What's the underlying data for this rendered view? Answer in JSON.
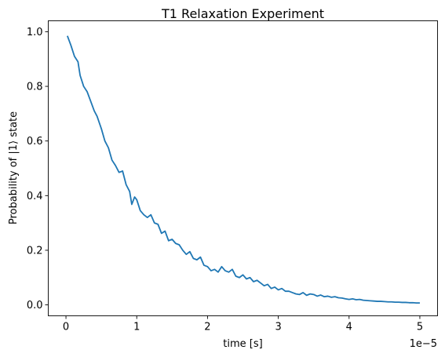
{
  "chart_data": {
    "type": "line",
    "title": "T1 Relaxation Experiment",
    "xlabel": "time [s]",
    "ylabel": "Probability of |1⟩ state",
    "x_offset_label": "1e−5",
    "x_scale": 1e-05,
    "xlim": [
      -0.25,
      5.25
    ],
    "ylim": [
      -0.04,
      1.04
    ],
    "x_ticks": [
      0,
      1,
      2,
      3,
      4,
      5
    ],
    "x_tick_labels": [
      "0",
      "1",
      "2",
      "3",
      "4",
      "5"
    ],
    "y_ticks": [
      0.0,
      0.2,
      0.4,
      0.6,
      0.8,
      1.0
    ],
    "y_tick_labels": [
      "0.0",
      "0.2",
      "0.4",
      "0.6",
      "0.8",
      "1.0"
    ],
    "grid": false,
    "series": [
      {
        "color": "#1f77b4",
        "x": [
          0.02,
          0.07,
          0.12,
          0.17,
          0.2,
          0.25,
          0.3,
          0.35,
          0.4,
          0.44,
          0.5,
          0.55,
          0.6,
          0.65,
          0.7,
          0.75,
          0.8,
          0.85,
          0.9,
          0.93,
          0.97,
          1.0,
          1.05,
          1.1,
          1.15,
          1.2,
          1.25,
          1.3,
          1.35,
          1.4,
          1.45,
          1.5,
          1.55,
          1.6,
          1.65,
          1.7,
          1.75,
          1.8,
          1.85,
          1.9,
          1.95,
          2.0,
          2.05,
          2.1,
          2.15,
          2.2,
          2.25,
          2.3,
          2.35,
          2.4,
          2.45,
          2.5,
          2.55,
          2.6,
          2.65,
          2.7,
          2.75,
          2.8,
          2.85,
          2.9,
          2.95,
          3.0,
          3.05,
          3.1,
          3.15,
          3.2,
          3.25,
          3.3,
          3.35,
          3.4,
          3.45,
          3.5,
          3.55,
          3.6,
          3.65,
          3.7,
          3.75,
          3.8,
          3.85,
          3.9,
          3.95,
          4.0,
          4.05,
          4.1,
          4.15,
          4.2,
          4.25,
          4.3,
          4.35,
          4.4,
          4.45,
          4.5,
          4.55,
          4.6,
          4.65,
          4.7,
          4.75,
          4.8,
          4.85,
          4.9,
          4.95,
          5.0
        ],
        "y": [
          0.985,
          0.95,
          0.91,
          0.89,
          0.84,
          0.8,
          0.78,
          0.745,
          0.71,
          0.69,
          0.645,
          0.6,
          0.575,
          0.53,
          0.51,
          0.485,
          0.49,
          0.44,
          0.415,
          0.368,
          0.395,
          0.385,
          0.345,
          0.33,
          0.32,
          0.33,
          0.3,
          0.295,
          0.262,
          0.27,
          0.235,
          0.24,
          0.225,
          0.22,
          0.2,
          0.185,
          0.195,
          0.17,
          0.165,
          0.175,
          0.145,
          0.14,
          0.125,
          0.13,
          0.12,
          0.14,
          0.125,
          0.12,
          0.13,
          0.105,
          0.1,
          0.11,
          0.095,
          0.1,
          0.085,
          0.09,
          0.08,
          0.07,
          0.075,
          0.06,
          0.065,
          0.055,
          0.06,
          0.05,
          0.05,
          0.045,
          0.04,
          0.038,
          0.045,
          0.035,
          0.04,
          0.038,
          0.032,
          0.036,
          0.03,
          0.032,
          0.028,
          0.03,
          0.026,
          0.025,
          0.022,
          0.02,
          0.022,
          0.019,
          0.02,
          0.017,
          0.016,
          0.015,
          0.014,
          0.013,
          0.013,
          0.012,
          0.011,
          0.011,
          0.01,
          0.01,
          0.009,
          0.009,
          0.008,
          0.008,
          0.007,
          0.007
        ]
      }
    ]
  }
}
